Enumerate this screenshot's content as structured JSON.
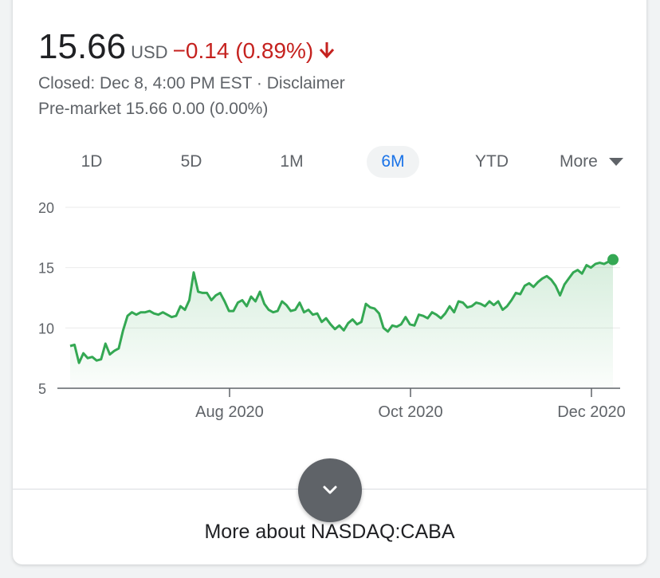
{
  "quote": {
    "price": "15.66",
    "currency": "USD",
    "change": "−0.14 (0.89%)",
    "closed_info": "Closed: Dec 8, 4:00 PM EST",
    "separator": " · ",
    "disclaimer": "Disclaimer",
    "premarket": "Pre-market 15.66 0.00 (0.00%)"
  },
  "tabs": [
    {
      "label": "1D",
      "active": false
    },
    {
      "label": "5D",
      "active": false
    },
    {
      "label": "1M",
      "active": false
    },
    {
      "label": "6M",
      "active": true
    },
    {
      "label": "YTD",
      "active": false
    },
    {
      "label": "More",
      "active": false
    }
  ],
  "colors": {
    "line": "#34a853",
    "fill": "#e6f4ea",
    "negative": "#c5221f",
    "active_tab": "#1a73e8"
  },
  "icons": {
    "change": "arrow-down-icon",
    "more": "caret-down-icon",
    "expand": "chevron-down-icon"
  },
  "chart_data": {
    "type": "area",
    "x_labels": [
      "Aug 2020",
      "Oct 2020",
      "Dec 2020"
    ],
    "y_ticks": [
      20,
      15,
      10,
      5
    ],
    "ylim": [
      5,
      20
    ],
    "grid": true,
    "series": [
      {
        "values": [
          8.5,
          8.6,
          7.1,
          7.9,
          7.5,
          7.6,
          7.3,
          7.4,
          8.7,
          7.8,
          8.1,
          8.3,
          9.8,
          11.0,
          11.3,
          11.1,
          11.3,
          11.3,
          11.4,
          11.2,
          11.1,
          11.3,
          11.1,
          10.9,
          11.0,
          11.8,
          11.5,
          12.3,
          14.6,
          13.0,
          12.9,
          12.9,
          12.3,
          12.7,
          12.9,
          12.2,
          11.4,
          11.4,
          12.1,
          12.3,
          11.8,
          12.6,
          12.2,
          13.0,
          12.0,
          11.5,
          11.3,
          11.4,
          12.2,
          11.9,
          11.4,
          11.5,
          12.1,
          11.3,
          11.5,
          11.1,
          11.2,
          10.5,
          10.8,
          10.3,
          9.9,
          10.2,
          9.8,
          10.4,
          10.7,
          10.3,
          10.5,
          12.0,
          11.7,
          11.6,
          11.2,
          10.0,
          9.7,
          10.2,
          10.1,
          10.3,
          10.9,
          10.3,
          10.2,
          11.1,
          11.0,
          10.8,
          11.3,
          11.1,
          10.8,
          11.2,
          11.8,
          11.3,
          12.2,
          12.1,
          11.7,
          11.8,
          12.1,
          12.0,
          11.8,
          12.2,
          11.9,
          12.2,
          11.5,
          11.8,
          12.3,
          12.9,
          12.8,
          13.5,
          13.7,
          13.4,
          13.8,
          14.1,
          14.3,
          14.0,
          13.5,
          12.7,
          13.6,
          14.1,
          14.6,
          14.8,
          14.5,
          15.2,
          15.0,
          15.3,
          15.4,
          15.3,
          15.5,
          15.66
        ]
      }
    ]
  },
  "footer": {
    "more_about": "More about NASDAQ:CABA"
  }
}
